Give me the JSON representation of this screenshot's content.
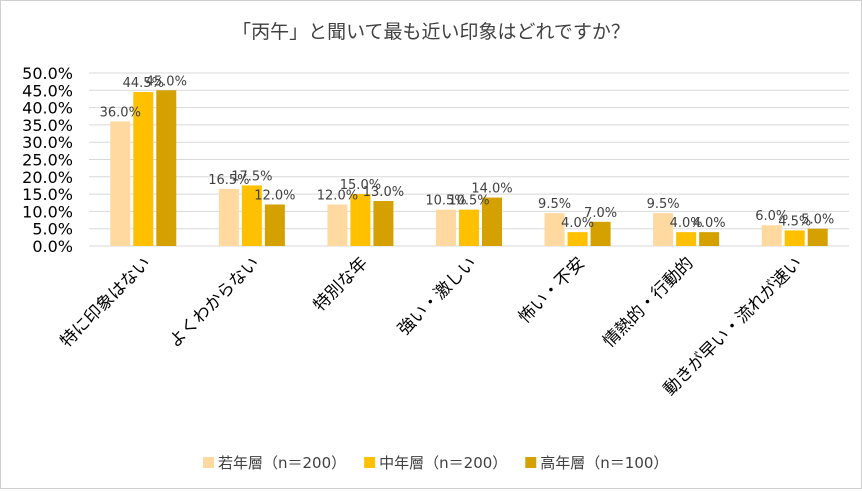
{
  "chart_data": {
    "type": "bar",
    "title": "「丙午」と聞いて最も近い印象はどれですか？",
    "xlabel": "",
    "ylabel": "",
    "ylim": [
      0,
      50
    ],
    "yticks": [
      "0.0%",
      "5.0%",
      "10.0%",
      "15.0%",
      "20.0%",
      "25.0%",
      "30.0%",
      "35.0%",
      "40.0%",
      "45.0%",
      "50.0%"
    ],
    "grid": true,
    "legend_position": "bottom",
    "categories": [
      "特に印象はない",
      "よくわからない",
      "特別な年",
      "強い・激しい",
      "怖い・不安",
      "情熱的・行動的",
      "動きが早い・流れが速い"
    ],
    "series": [
      {
        "name": "若年層（n＝200）",
        "color": "#FFD9A0",
        "values": [
          36.0,
          16.5,
          12.0,
          10.5,
          9.5,
          9.5,
          6.0
        ],
        "labels": [
          "36.0%",
          "16.5%",
          "12.0%",
          "10.5%",
          "9.5%",
          "9.5%",
          "6.0%"
        ]
      },
      {
        "name": "中年層（n＝200）",
        "color": "#FFC000",
        "values": [
          44.5,
          17.5,
          15.0,
          10.5,
          4.0,
          4.0,
          4.5
        ],
        "labels": [
          "44.5%",
          "17.5%",
          "15.0%",
          "10.5%",
          "4.0%",
          "4.0%",
          "4.5%"
        ]
      },
      {
        "name": "高年層（n＝100）",
        "color": "#D4A100",
        "values": [
          45.0,
          12.0,
          13.0,
          14.0,
          7.0,
          4.0,
          5.0
        ],
        "labels": [
          "45.0%",
          "12.0%",
          "13.0%",
          "14.0%",
          "7.0%",
          "4.0%",
          "5.0%"
        ]
      }
    ]
  }
}
